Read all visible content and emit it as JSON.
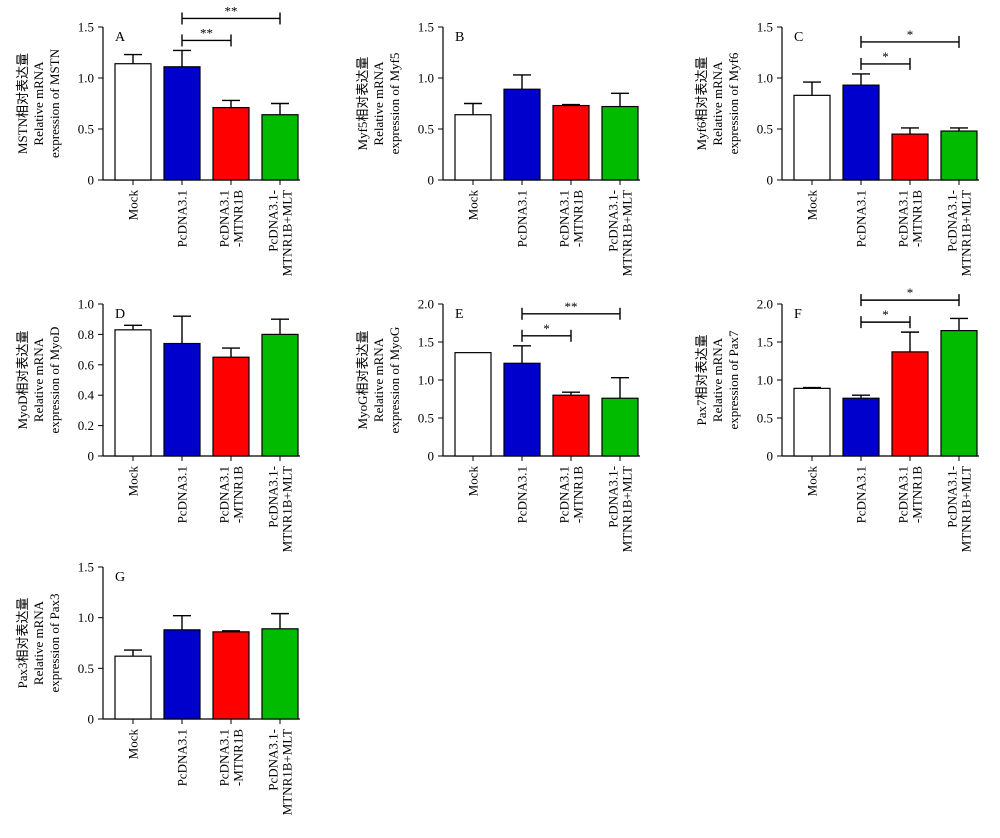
{
  "figure": {
    "categories": [
      "Mock",
      "PcDNA3.1",
      "PcDNA3.1\n-MTNR1B",
      "PcDNA3.1-\nMTNR1B+MLT"
    ],
    "bar_colors": [
      "#ffffff",
      "#0000cc",
      "#ff0000",
      "#00bb00"
    ]
  },
  "chart_data": [
    {
      "panel": "A",
      "type": "bar",
      "ylabel": [
        "MSTN相对表达量",
        "Relative mRNA",
        "expression of MSTN"
      ],
      "ylim": [
        0,
        1.5
      ],
      "yticks": [
        0,
        0.5,
        1.0,
        1.5
      ],
      "yticklabels": [
        "0",
        "0.5",
        "1.0",
        "1.5"
      ],
      "values": [
        1.14,
        1.11,
        0.71,
        0.64
      ],
      "errors": [
        0.09,
        0.16,
        0.07,
        0.11
      ],
      "significance": [
        {
          "from": 1,
          "to": 2,
          "label": "**"
        },
        {
          "from": 1,
          "to": 3,
          "label": "**"
        }
      ]
    },
    {
      "panel": "B",
      "type": "bar",
      "ylabel": [
        "Myf5相对表达量",
        "Relative mRNA",
        "expression of Myf5"
      ],
      "ylim": [
        0,
        1.5
      ],
      "yticks": [
        0,
        0.5,
        1.0,
        1.5
      ],
      "yticklabels": [
        "0",
        "0.5",
        "1.0",
        "1.5"
      ],
      "values": [
        0.64,
        0.89,
        0.73,
        0.72
      ],
      "errors": [
        0.11,
        0.14,
        0.01,
        0.13
      ],
      "significance": []
    },
    {
      "panel": "C",
      "type": "bar",
      "ylabel": [
        "Myf6相对表达量",
        "Relative mRNA",
        "expression of Myf6"
      ],
      "ylim": [
        0,
        1.5
      ],
      "yticks": [
        0,
        0.5,
        1.0,
        1.5
      ],
      "yticklabels": [
        "0",
        "0.5",
        "1.0",
        "1.5"
      ],
      "values": [
        0.83,
        0.93,
        0.45,
        0.48
      ],
      "errors": [
        0.13,
        0.11,
        0.06,
        0.03
      ],
      "significance": [
        {
          "from": 1,
          "to": 2,
          "label": "*"
        },
        {
          "from": 1,
          "to": 3,
          "label": "*"
        }
      ]
    },
    {
      "panel": "D",
      "type": "bar",
      "ylabel": [
        "MyoD相对表达量",
        "Relative mRNA",
        "expression of MyoD"
      ],
      "ylim": [
        0,
        1.0
      ],
      "yticks": [
        0,
        0.2,
        0.4,
        0.6,
        0.8,
        1.0
      ],
      "yticklabels": [
        "0",
        "0.2",
        "0.4",
        "0.6",
        "0.8",
        "1.0"
      ],
      "values": [
        0.83,
        0.74,
        0.65,
        0.8
      ],
      "errors": [
        0.03,
        0.18,
        0.06,
        0.1
      ],
      "significance": []
    },
    {
      "panel": "E",
      "type": "bar",
      "ylabel": [
        "MyoG相对表达量",
        "Relative mRNA",
        "expression of MyoG"
      ],
      "ylim": [
        0,
        2.0
      ],
      "yticks": [
        0,
        0.5,
        1.0,
        1.5,
        2.0
      ],
      "yticklabels": [
        "0",
        "0.5",
        "1.0",
        "1.5",
        "2.0"
      ],
      "values": [
        1.36,
        1.22,
        0.8,
        0.76
      ],
      "errors": [
        0.0,
        0.23,
        0.04,
        0.27
      ],
      "significance": [
        {
          "from": 1,
          "to": 2,
          "label": "*"
        },
        {
          "from": 1,
          "to": 3,
          "label": "**"
        }
      ]
    },
    {
      "panel": "F",
      "type": "bar",
      "ylabel": [
        "Pax7相对表达量",
        "Relative mRNA",
        "expression of Pax7"
      ],
      "ylim": [
        0,
        2.0
      ],
      "yticks": [
        0,
        0.5,
        1.0,
        1.5,
        2.0
      ],
      "yticklabels": [
        "0",
        "0.5",
        "1.0",
        "1.5",
        "2.0"
      ],
      "values": [
        0.89,
        0.76,
        1.37,
        1.65
      ],
      "errors": [
        0.01,
        0.04,
        0.26,
        0.16
      ],
      "significance": [
        {
          "from": 1,
          "to": 2,
          "label": "*"
        },
        {
          "from": 1,
          "to": 3,
          "label": "*"
        }
      ]
    },
    {
      "panel": "G",
      "type": "bar",
      "ylabel": [
        "Pax3相对表达量",
        "Relative mRNA",
        "expression of Pax3"
      ],
      "ylim": [
        0,
        1.5
      ],
      "yticks": [
        0,
        0.5,
        1.0,
        1.5
      ],
      "yticklabels": [
        "0",
        "0.5",
        "1.0",
        "1.5"
      ],
      "values": [
        0.62,
        0.88,
        0.86,
        0.89
      ],
      "errors": [
        0.06,
        0.14,
        0.01,
        0.15
      ],
      "significance": []
    }
  ]
}
